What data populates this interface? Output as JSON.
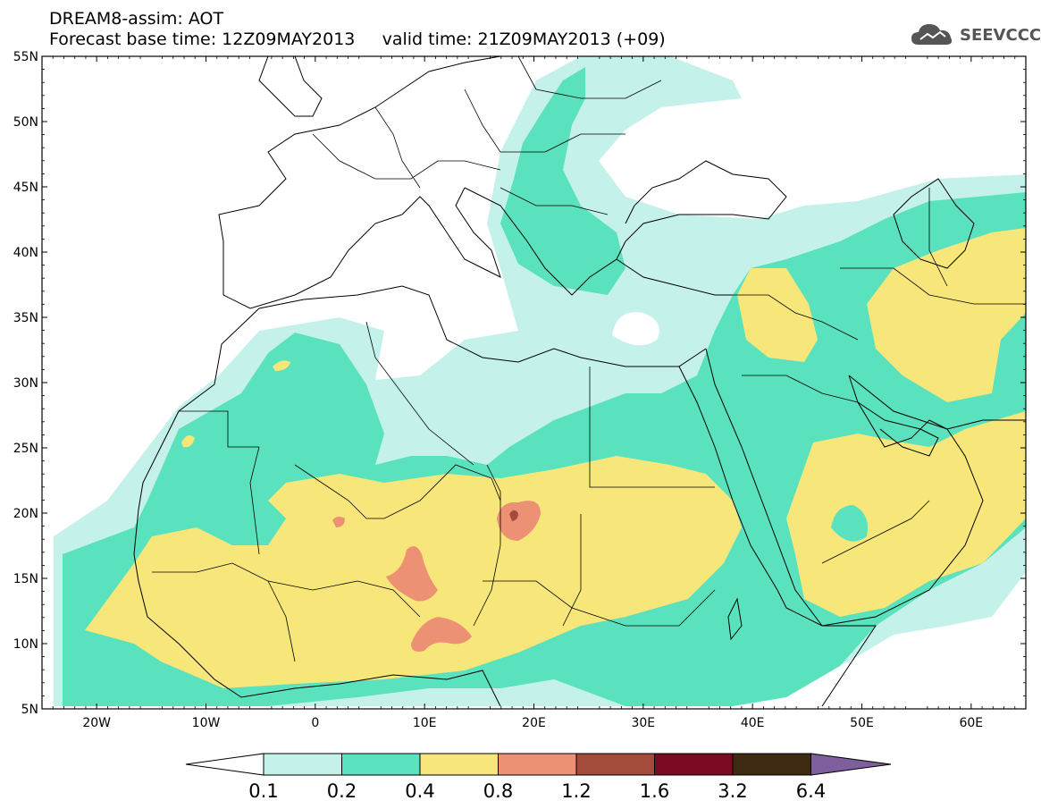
{
  "header": {
    "title_line1": "DREAM8-assim: AOT",
    "title_line2": "Forecast base time: 12Z09MAY2013     valid time: 21Z09MAY2013 (+09)"
  },
  "logo": {
    "text": "SEEVCCC",
    "icon": "cloud-icon",
    "color": "#555555"
  },
  "map": {
    "lat_labels": [
      "55N",
      "50N",
      "45N",
      "40N",
      "35N",
      "30N",
      "25N",
      "20N",
      "15N",
      "10N",
      "5N"
    ],
    "lon_labels": [
      "20W",
      "10W",
      "0",
      "10E",
      "20E",
      "30E",
      "40E",
      "50E",
      "60E"
    ],
    "lat_range": [
      5,
      55
    ],
    "lon_range": [
      -25,
      65
    ]
  },
  "colorbar": {
    "labels": [
      "0.1",
      "0.2",
      "0.4",
      "0.8",
      "1.2",
      "1.6",
      "3.2",
      "6.4"
    ],
    "colors": [
      "#ffffff",
      "#c4f2ea",
      "#5ae1bd",
      "#f7e77a",
      "#ec9174",
      "#a54b3b",
      "#7c0a22",
      "#3f2a14",
      "#7e5e9c"
    ]
  }
}
